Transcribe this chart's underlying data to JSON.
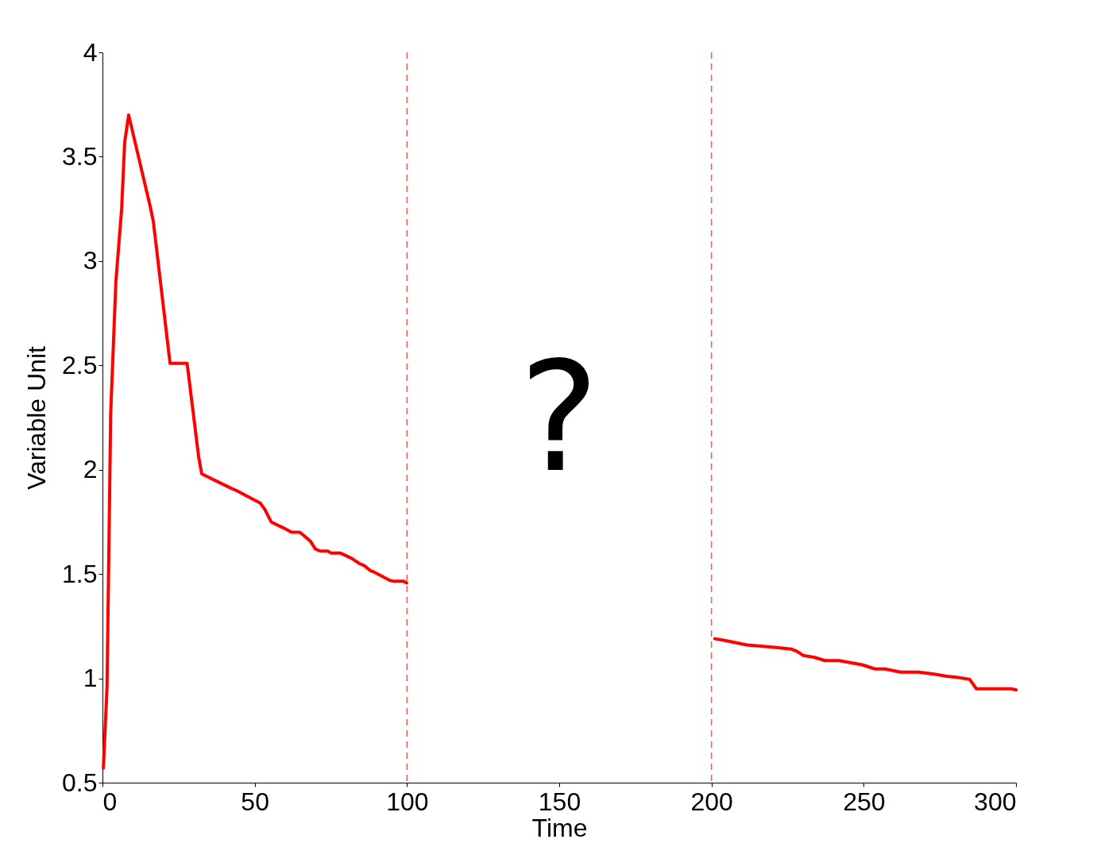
{
  "chart_data": {
    "type": "line",
    "xlabel": "Time",
    "ylabel": "Variable Unit",
    "xlim": [
      0,
      300
    ],
    "ylim": [
      0.5,
      4
    ],
    "xticks": [
      0,
      50,
      100,
      150,
      200,
      250,
      300
    ],
    "yticks": [
      0.5,
      1,
      1.5,
      2,
      2.5,
      3,
      3.5,
      4
    ],
    "grid": false,
    "legend": false,
    "marker": "none",
    "line_style": "solid",
    "series": [
      {
        "color": "#ff0000",
        "x": [
          0.3,
          1.5,
          2.7,
          4.4,
          6.3,
          7.3,
          8.6,
          15.7,
          16.7,
          22.2,
          27.8,
          31.6,
          32.6,
          42.4,
          44,
          51.8,
          53.3,
          55.4,
          58.1,
          59.6,
          62.1,
          64.8,
          67.3,
          68.4,
          69.9,
          71.5,
          74,
          75.1,
          78.2,
          81.8,
          84.4,
          86,
          88.1,
          89.1,
          94.3,
          95.8,
          98.9,
          99.9
        ],
        "values": [
          0.57,
          0.96,
          2.27,
          2.9,
          3.25,
          3.57,
          3.7,
          3.26,
          3.19,
          2.51,
          2.51,
          2.06,
          1.98,
          1.91,
          1.9,
          1.84,
          1.81,
          1.75,
          1.73,
          1.72,
          1.7,
          1.7,
          1.67,
          1.655,
          1.62,
          1.61,
          1.61,
          1.6,
          1.6,
          1.575,
          1.55,
          1.54,
          1.515,
          1.51,
          1.47,
          1.465,
          1.465,
          1.457
        ]
      },
      {
        "color": "#ff0000",
        "x": [
          201.1,
          204.9,
          211.6,
          220,
          226.3,
          228,
          230.1,
          233.9,
          237.3,
          241.9,
          249.5,
          253.7,
          257,
          262.1,
          268,
          273.1,
          277.3,
          280.6,
          284.8,
          287,
          298.3,
          300
        ],
        "values": [
          1.19,
          1.18,
          1.16,
          1.15,
          1.14,
          1.13,
          1.11,
          1.1,
          1.085,
          1.085,
          1.065,
          1.045,
          1.045,
          1.03,
          1.03,
          1.02,
          1.01,
          1.005,
          0.995,
          0.95,
          0.95,
          0.945
        ]
      }
    ],
    "ref_lines": [
      {
        "axis": "x",
        "value": 100,
        "color": "#ff5555",
        "line_style": "dashed"
      },
      {
        "axis": "x",
        "value": 200,
        "color": "#ff5555",
        "line_style": "dashed"
      }
    ],
    "annotations": [
      "?"
    ]
  }
}
